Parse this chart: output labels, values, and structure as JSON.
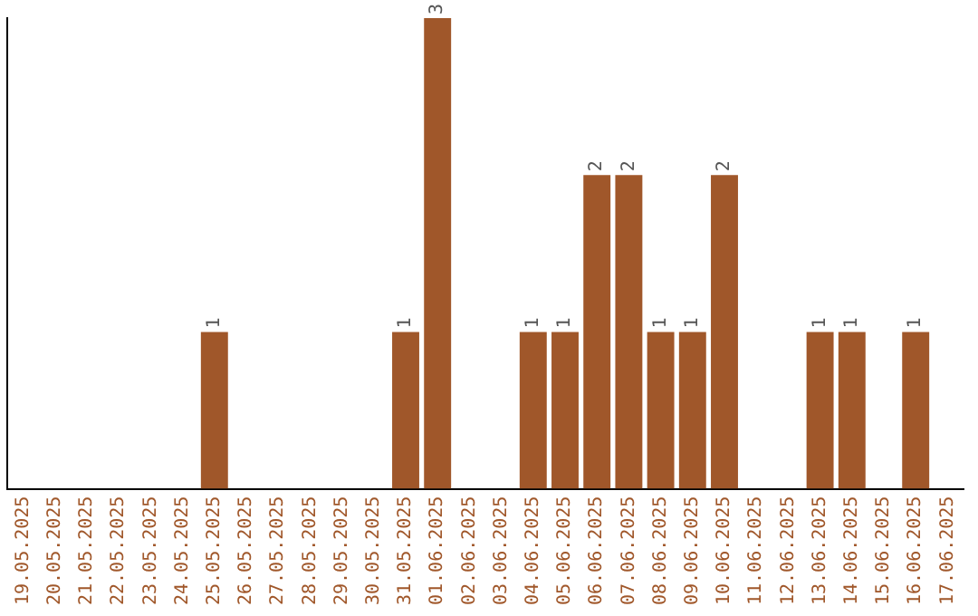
{
  "chart_data": {
    "type": "bar",
    "categories": [
      "19.05.2025",
      "20.05.2025",
      "21.05.2025",
      "22.05.2025",
      "23.05.2025",
      "24.05.2025",
      "25.05.2025",
      "26.05.2025",
      "27.05.2025",
      "28.05.2025",
      "29.05.2025",
      "30.05.2025",
      "31.05.2025",
      "01.06.2025",
      "02.06.2025",
      "03.06.2025",
      "04.06.2025",
      "05.06.2025",
      "06.06.2025",
      "07.06.2025",
      "08.06.2025",
      "09.06.2025",
      "10.06.2025",
      "11.06.2025",
      "12.06.2025",
      "13.06.2025",
      "14.06.2025",
      "15.06.2025",
      "16.06.2025",
      "17.06.2025"
    ],
    "values": [
      0,
      0,
      0,
      0,
      0,
      0,
      1,
      0,
      0,
      0,
      0,
      0,
      1,
      3,
      0,
      0,
      1,
      1,
      2,
      2,
      1,
      1,
      2,
      0,
      0,
      1,
      1,
      0,
      1,
      0
    ],
    "value_labels": [
      null,
      null,
      null,
      null,
      null,
      null,
      "1",
      null,
      null,
      null,
      null,
      null,
      "1",
      "3",
      null,
      null,
      "1",
      "1",
      "2",
      "2",
      "1",
      "1",
      "2",
      null,
      null,
      "1",
      "1",
      null,
      "1",
      null
    ],
    "color": "#a0572a",
    "tick_labels": "x",
    "grid": false,
    "legend": false
  }
}
